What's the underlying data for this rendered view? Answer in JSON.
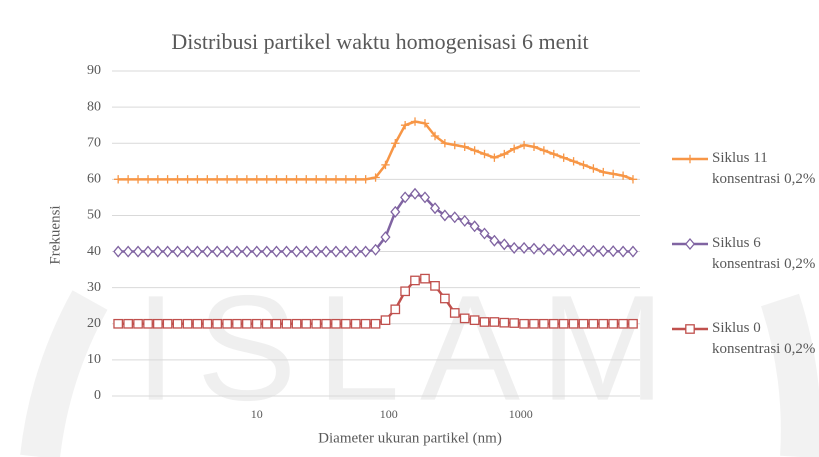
{
  "chart_data": {
    "type": "line",
    "title": "Distribusi partikel waktu homogenisasi 6 menit",
    "x_label": "Diameter ukuran partikel (nm)",
    "y_label": "Frekuensi",
    "watermark": "ISLAM",
    "x_log_scale": true,
    "grid": true,
    "legend_position": "right",
    "xlim": [
      0.8,
      8000
    ],
    "xticks": [
      10,
      100,
      1000
    ],
    "ylim": [
      0,
      90
    ],
    "yticks": [
      0,
      10,
      20,
      30,
      40,
      50,
      60,
      70,
      80,
      90
    ],
    "x": [
      0.891,
      1.06,
      1.26,
      1.5,
      1.78,
      2.11,
      2.51,
      2.99,
      3.55,
      4.22,
      5.01,
      5.96,
      7.08,
      8.41,
      10,
      11.9,
      14.1,
      16.8,
      20,
      23.7,
      28.2,
      33.5,
      39.8,
      47.3,
      56.2,
      66.8,
      79.4,
      94.4,
      112,
      133,
      158,
      188,
      224,
      266,
      316,
      376,
      447,
      531,
      631,
      750,
      891,
      1059,
      1259,
      1496,
      1778,
      2113,
      2512,
      2985,
      3548,
      4217,
      5012,
      5957,
      7079
    ],
    "series": [
      {
        "name": "Siklus 11 konsentrasi 0,2%",
        "color": "#f79646",
        "marker": "plus",
        "values": [
          60,
          60,
          60,
          60,
          60,
          60,
          60,
          60,
          60,
          60,
          60,
          60,
          60,
          60,
          60,
          60,
          60,
          60,
          60,
          60,
          60,
          60,
          60,
          60,
          60,
          60,
          60.5,
          64,
          70,
          75,
          76,
          75.5,
          72,
          70,
          69.5,
          69,
          68,
          67,
          66,
          67,
          68.5,
          69.5,
          69,
          68,
          67,
          66,
          65,
          64,
          63,
          62,
          61.5,
          61,
          60
        ]
      },
      {
        "name": "Siklus 6 konsentrasi 0,2%",
        "color": "#8064a2",
        "marker": "diamond",
        "values": [
          40,
          40,
          40,
          40,
          40,
          40,
          40,
          40,
          40,
          40,
          40,
          40,
          40,
          40,
          40,
          40,
          40,
          40,
          40,
          40,
          40,
          40,
          40,
          40,
          40,
          40,
          40.5,
          44,
          51,
          55,
          56,
          55,
          52,
          50,
          49.5,
          48.5,
          47,
          45,
          43,
          42,
          41,
          41,
          40.8,
          40.6,
          40.5,
          40.4,
          40.3,
          40.2,
          40.2,
          40.1,
          40.1,
          40,
          40
        ]
      },
      {
        "name": "Siklus 0 konsentrasi 0,2%",
        "color": "#c0504d",
        "marker": "square",
        "values": [
          20,
          20,
          20,
          20,
          20,
          20,
          20,
          20,
          20,
          20,
          20,
          20,
          20,
          20,
          20,
          20,
          20,
          20,
          20,
          20,
          20,
          20,
          20,
          20,
          20,
          20,
          20,
          21,
          24,
          29,
          32,
          32.5,
          30.5,
          27,
          23,
          21.5,
          21,
          20.5,
          20.5,
          20.3,
          20.2,
          20,
          20,
          20,
          20,
          20,
          20,
          20,
          20,
          20,
          20,
          20,
          20
        ]
      }
    ]
  }
}
